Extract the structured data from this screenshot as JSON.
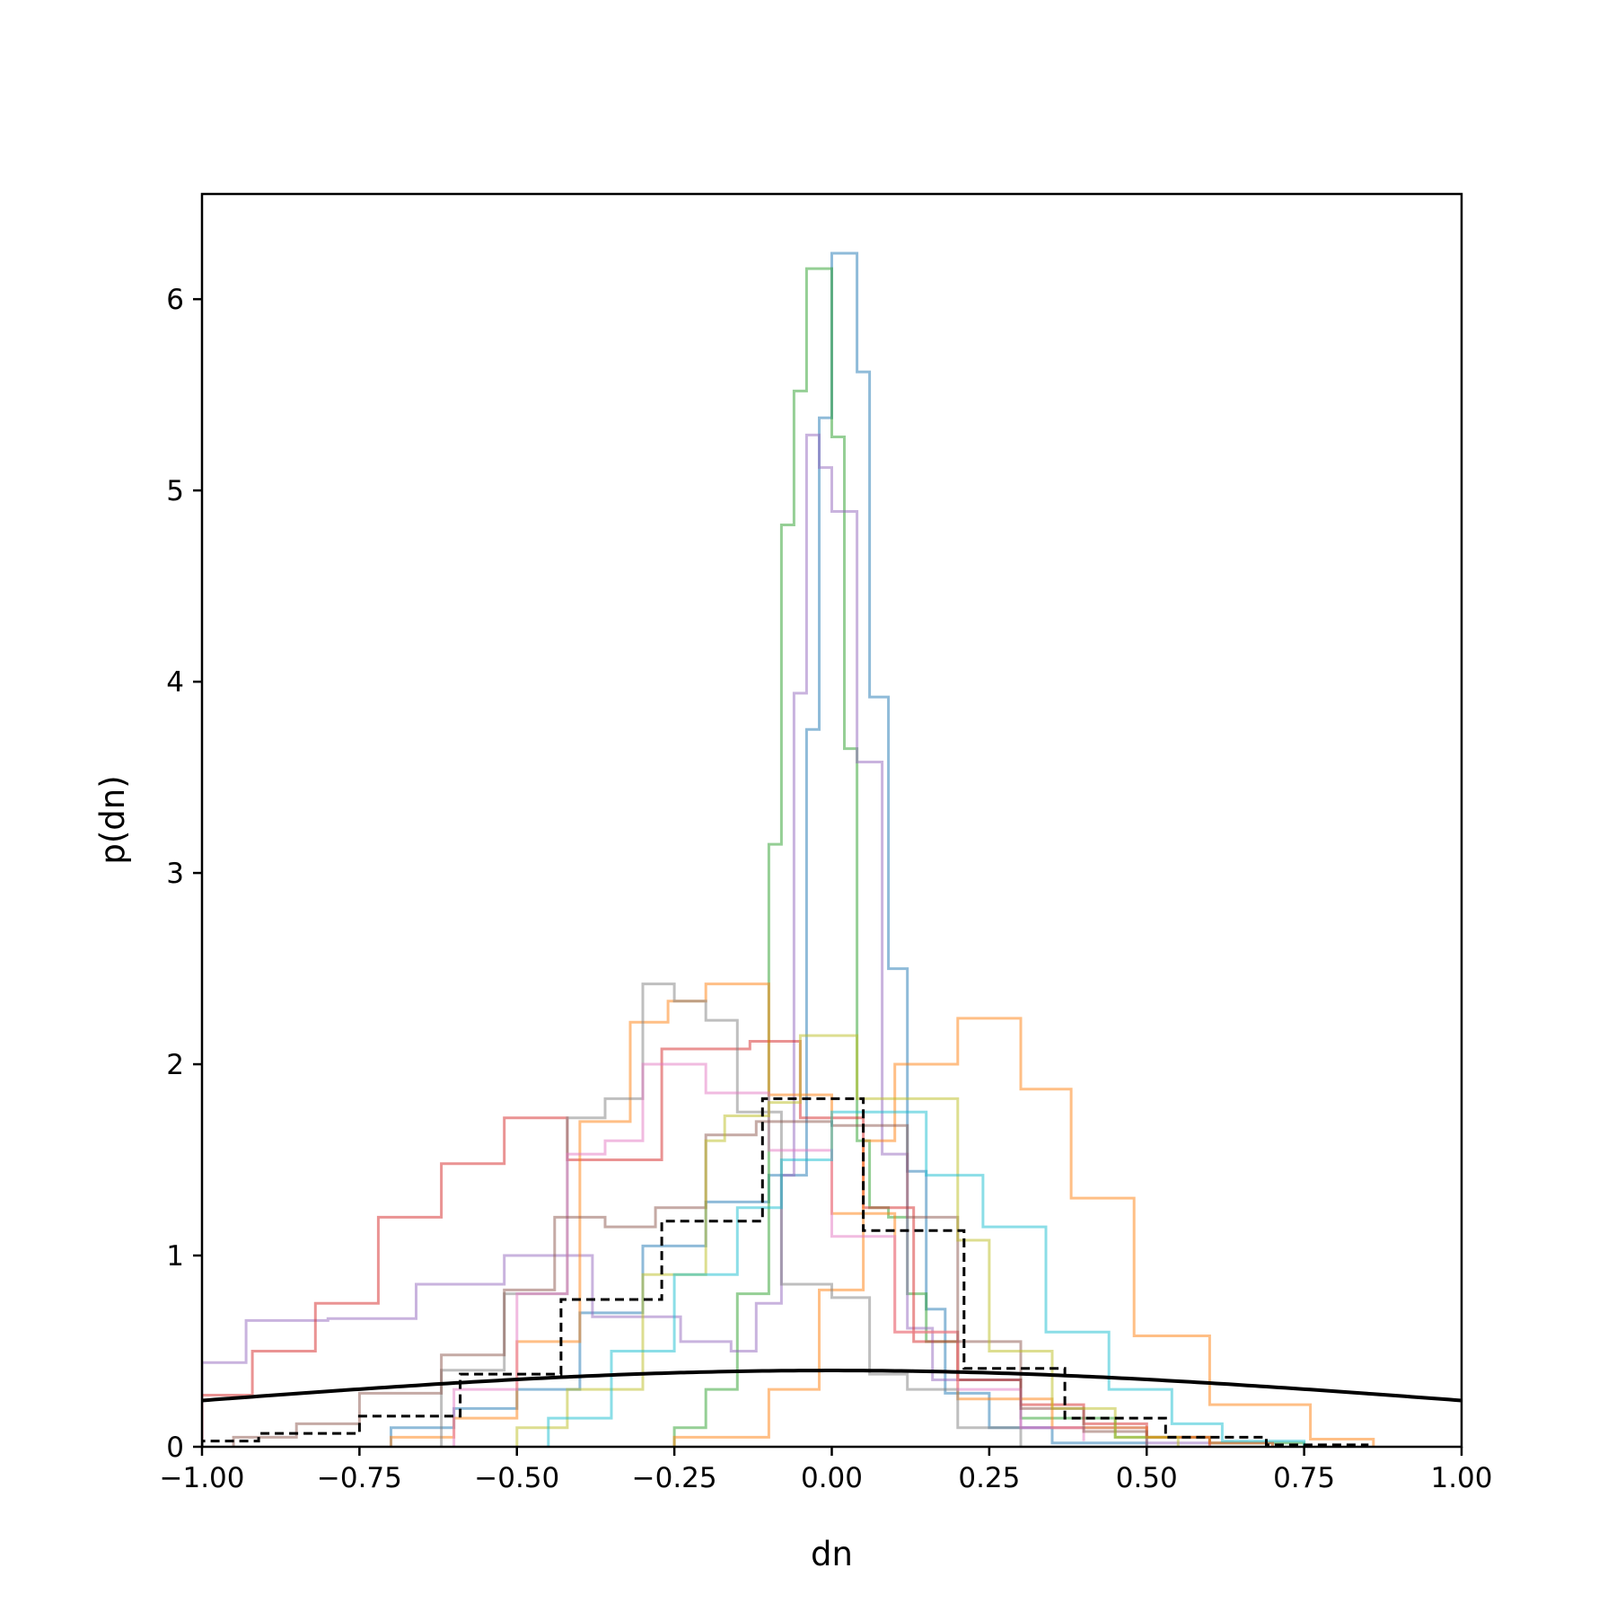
{
  "chart_data": {
    "type": "histogram",
    "title": "",
    "xlabel": "dn",
    "ylabel": "p(dn)",
    "xlim": [
      -1.0,
      1.0
    ],
    "ylim": [
      0,
      6.55
    ],
    "grid": false,
    "legend": "none",
    "x_ticks": [
      "−1.00",
      "−0.75",
      "−0.50",
      "−0.25",
      "0.00",
      "0.25",
      "0.50",
      "0.75",
      "1.00"
    ],
    "x_tick_values": [
      -1.0,
      -0.75,
      -0.5,
      -0.25,
      0.0,
      0.25,
      0.5,
      0.75,
      1.0
    ],
    "y_ticks": [
      "0",
      "1",
      "2",
      "3",
      "4",
      "5",
      "6"
    ],
    "y_tick_values": [
      0,
      1,
      2,
      3,
      4,
      5,
      6
    ],
    "series": [
      {
        "kind": "step",
        "color": "#1f77b4",
        "opacity": 0.5,
        "edges": [
          -0.7,
          -0.6,
          -0.5,
          -0.4,
          -0.3,
          -0.2,
          -0.1,
          -0.04,
          -0.02,
          0.0,
          0.02,
          0.04,
          0.06,
          0.09,
          0.12,
          0.15,
          0.18,
          0.25,
          0.35,
          0.5
        ],
        "values": [
          0.1,
          0.2,
          0.3,
          0.7,
          1.05,
          1.28,
          1.42,
          3.75,
          5.38,
          6.24,
          6.24,
          5.62,
          3.92,
          2.5,
          1.44,
          0.72,
          0.28,
          0.1,
          0.02
        ]
      },
      {
        "kind": "step",
        "color": "#2ca02c",
        "opacity": 0.5,
        "edges": [
          -0.25,
          -0.2,
          -0.15,
          -0.1,
          -0.08,
          -0.06,
          -0.04,
          -0.02,
          0.0,
          0.02,
          0.04,
          0.06,
          0.09,
          0.12,
          0.15,
          0.2,
          0.3,
          0.45,
          0.6,
          0.75
        ],
        "values": [
          0.1,
          0.3,
          0.8,
          3.15,
          4.82,
          5.52,
          6.16,
          6.16,
          5.28,
          3.65,
          1.6,
          1.25,
          1.2,
          0.8,
          0.55,
          0.35,
          0.15,
          0.05,
          0.02
        ]
      },
      {
        "kind": "step",
        "color": "#9467bd",
        "opacity": 0.5,
        "edges": [
          -1.0,
          -0.93,
          -0.8,
          -0.66,
          -0.52,
          -0.38,
          -0.24,
          -0.16,
          -0.12,
          -0.08,
          -0.06,
          -0.04,
          -0.02,
          0.0,
          0.04,
          0.08,
          0.12,
          0.16,
          0.3,
          0.5,
          0.7
        ],
        "values": [
          0.44,
          0.66,
          0.67,
          0.85,
          1.0,
          0.68,
          0.55,
          0.5,
          0.75,
          1.42,
          3.94,
          5.29,
          5.12,
          4.89,
          3.58,
          1.53,
          0.62,
          0.35,
          0.1,
          0.02
        ]
      },
      {
        "kind": "step",
        "color": "#d62728",
        "opacity": 0.5,
        "edges": [
          -1.0,
          -0.92,
          -0.82,
          -0.72,
          -0.62,
          -0.52,
          -0.42,
          -0.27,
          -0.13,
          -0.05,
          0.05,
          0.13,
          0.2,
          0.3,
          0.4,
          0.5,
          0.6
        ],
        "values": [
          0.27,
          0.5,
          0.75,
          1.2,
          1.48,
          1.72,
          1.5,
          2.08,
          2.12,
          1.72,
          1.25,
          0.55,
          0.35,
          0.22,
          0.12,
          0.05
        ]
      },
      {
        "kind": "step",
        "color": "#ff7f0e",
        "opacity": 0.5,
        "edges": [
          -0.7,
          -0.6,
          -0.5,
          -0.4,
          -0.32,
          -0.26,
          -0.2,
          -0.1,
          0.0,
          0.1,
          0.2,
          0.35,
          0.5,
          0.6,
          0.7
        ],
        "values": [
          0.05,
          0.15,
          0.55,
          1.7,
          2.22,
          2.33,
          2.42,
          1.84,
          1.22,
          0.6,
          0.25,
          0.1,
          0.05,
          0.02
        ]
      },
      {
        "kind": "step",
        "color": "#ff7f0e",
        "opacity": 0.5,
        "edges": [
          -0.25,
          -0.1,
          -0.02,
          0.05,
          0.1,
          0.2,
          0.3,
          0.38,
          0.48,
          0.6,
          0.76,
          0.86
        ],
        "values": [
          0.05,
          0.3,
          0.82,
          1.6,
          2.0,
          2.24,
          1.87,
          1.3,
          0.58,
          0.22,
          0.04
        ]
      },
      {
        "kind": "step",
        "color": "#7f7f7f",
        "opacity": 0.5,
        "edges": [
          -0.62,
          -0.52,
          -0.42,
          -0.36,
          -0.3,
          -0.25,
          -0.2,
          -0.15,
          -0.08,
          0.0,
          0.06,
          0.12,
          0.2,
          0.3
        ],
        "values": [
          0.4,
          0.8,
          1.72,
          1.82,
          2.42,
          2.33,
          2.23,
          1.75,
          0.85,
          0.78,
          0.38,
          0.3,
          0.1
        ]
      },
      {
        "kind": "step",
        "color": "#e377c2",
        "opacity": 0.5,
        "edges": [
          -0.6,
          -0.5,
          -0.42,
          -0.36,
          -0.3,
          -0.25,
          -0.2,
          -0.1,
          0.0,
          0.1,
          0.2,
          0.3,
          0.4
        ],
        "values": [
          0.3,
          0.8,
          1.53,
          1.6,
          2.0,
          2.0,
          1.85,
          1.55,
          1.1,
          0.6,
          0.3,
          0.1,
          0.03
        ]
      },
      {
        "kind": "step",
        "color": "#8c564b",
        "opacity": 0.5,
        "edges": [
          -0.95,
          -0.85,
          -0.75,
          -0.62,
          -0.52,
          -0.44,
          -0.36,
          -0.28,
          -0.2,
          -0.12,
          0.0,
          0.12,
          0.2,
          0.3,
          0.4,
          0.5
        ],
        "values": [
          0.05,
          0.12,
          0.28,
          0.48,
          0.82,
          1.2,
          1.15,
          1.25,
          1.63,
          1.7,
          1.68,
          1.2,
          0.55,
          0.2,
          0.08
        ]
      },
      {
        "kind": "step",
        "color": "#bcbd22",
        "opacity": 0.5,
        "edges": [
          -0.5,
          -0.42,
          -0.3,
          -0.2,
          -0.17,
          -0.1,
          -0.05,
          0.04,
          0.1,
          0.2,
          0.25,
          0.35,
          0.45,
          0.55
        ],
        "values": [
          0.1,
          0.3,
          0.9,
          1.6,
          1.73,
          1.8,
          2.15,
          1.82,
          1.82,
          1.08,
          0.5,
          0.2,
          0.05
        ]
      },
      {
        "kind": "step",
        "color": "#17becf",
        "opacity": 0.5,
        "edges": [
          -0.45,
          -0.35,
          -0.25,
          -0.15,
          -0.08,
          0.0,
          0.1,
          0.15,
          0.24,
          0.34,
          0.44,
          0.54,
          0.62,
          0.75
        ],
        "values": [
          0.15,
          0.5,
          0.9,
          1.25,
          1.5,
          1.75,
          1.75,
          1.42,
          1.15,
          0.6,
          0.3,
          0.12,
          0.03
        ]
      },
      {
        "kind": "step",
        "color": "#000000",
        "opacity": 1.0,
        "dashed": true,
        "edges": [
          -1.0,
          -0.91,
          -0.75,
          -0.59,
          -0.43,
          -0.27,
          -0.11,
          0.05,
          0.21,
          0.37,
          0.53,
          0.69,
          0.85
        ],
        "values": [
          0.03,
          0.07,
          0.16,
          0.38,
          0.77,
          1.18,
          1.82,
          1.13,
          0.41,
          0.15,
          0.05,
          0.01
        ]
      },
      {
        "kind": "curve",
        "color": "#000000",
        "opacity": 1.0,
        "function": "normal_pdf",
        "mean": 0.0,
        "sigma": 1.0
      }
    ]
  }
}
